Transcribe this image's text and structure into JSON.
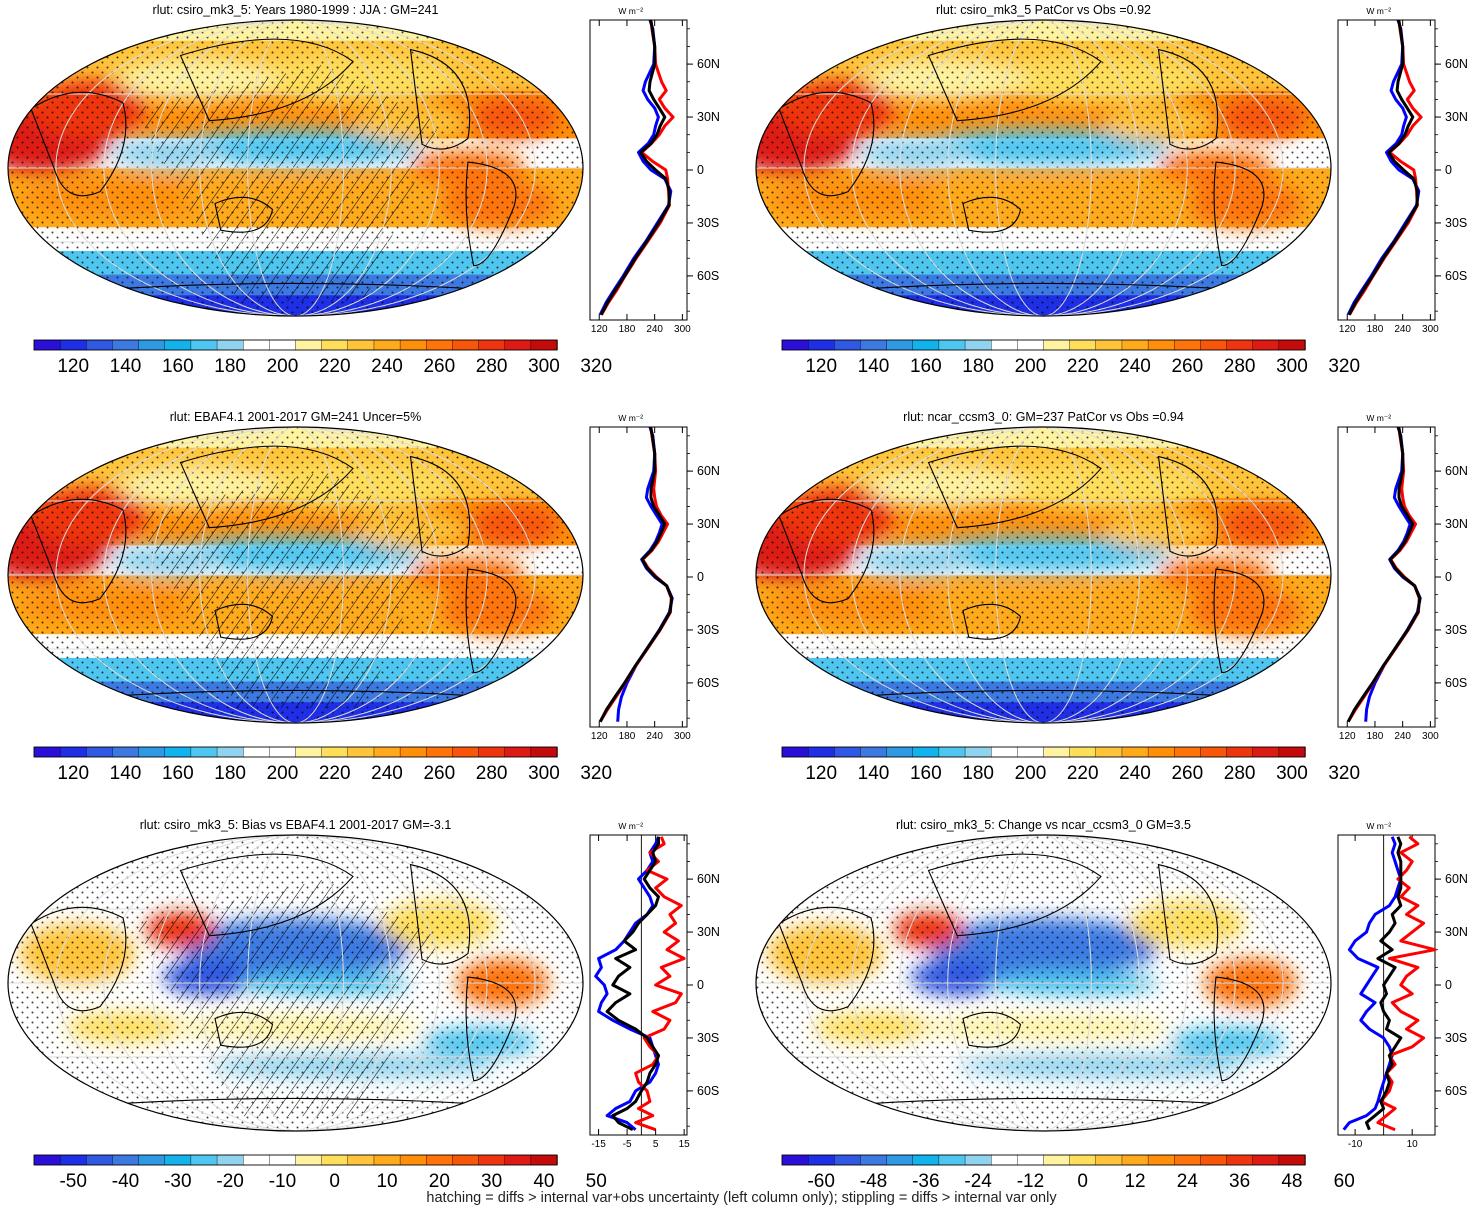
{
  "footer_note": "hatching = diffs > internal var+obs uncertainty (left column only); stippling = diffs > internal var only",
  "zonal_unit": "W m⁻²",
  "lat_labels": [
    "60N",
    "30N",
    "0",
    "30S",
    "60S"
  ],
  "colors": {
    "ramp_abs": [
      "#2a0fd8",
      "#1f2fe6",
      "#3058e2",
      "#3c7ae2",
      "#2f9ae4",
      "#12b3ec",
      "#4fc6ef",
      "#8fd3ee",
      "#ffffff",
      "#ffffff",
      "#fff2a0",
      "#ffde5c",
      "#ffc43a",
      "#ffaa1c",
      "#ff8f0a",
      "#ff740a",
      "#f8560a",
      "#ee3510",
      "#de1a14",
      "#c40a0a"
    ],
    "ramp_diff": [
      "#2a0fd8",
      "#1f2fe6",
      "#3058e2",
      "#3c7ae2",
      "#2f9ae4",
      "#12b3ec",
      "#4fc6ef",
      "#8fd3ee",
      "#ffffff",
      "#ffffff",
      "#fff2a0",
      "#ffde5c",
      "#ffc43a",
      "#ffaa1c",
      "#ff8f0a",
      "#ff740a",
      "#f8560a",
      "#ee3510",
      "#de1a14",
      "#c40a0a"
    ],
    "line_model": "#0000ff",
    "line_obs": "#ff0000",
    "line_diff": "#000000"
  },
  "panels": [
    {
      "id": "model-abs",
      "title": "rlut: csiro_mk3_5: Years 1980-1999 : JJA : GM=241",
      "map_type": "abs",
      "hatching": true,
      "colorbar_labels": [
        "120",
        "140",
        "160",
        "180",
        "200",
        "220",
        "240",
        "260",
        "280",
        "300",
        "320"
      ],
      "zonal": {
        "range": [
          100,
          310
        ],
        "tick_values": [
          120,
          180,
          240,
          300
        ],
        "tick_labels": [
          "120",
          "180",
          "240",
          "300"
        ],
        "zero_line": false,
        "lat": [
          -82,
          -75,
          -68,
          -60,
          -50,
          -40,
          -30,
          -20,
          -12,
          -5,
          0,
          5,
          10,
          15,
          20,
          25,
          30,
          35,
          40,
          45,
          50,
          60,
          70,
          80,
          85
        ],
        "series": [
          {
            "name": "model",
            "color": "blue",
            "values": [
              122,
              135,
              152,
              172,
              195,
              222,
              246,
              270,
              275,
              262,
              232,
              215,
              205,
              226,
              238,
              242,
              248,
              240,
              225,
              215,
              220,
              238,
              240,
              236,
              230
            ]
          },
          {
            "name": "obs",
            "color": "red",
            "values": [
              125,
              140,
              158,
              176,
              200,
              226,
              252,
              272,
              270,
              268,
              264,
              235,
              212,
              233,
              250,
              262,
              280,
              262,
              250,
              265,
              255,
              242,
              240,
              234,
              232
            ]
          },
          {
            "name": "ref",
            "color": "black",
            "values": [
              124,
              138,
              155,
              175,
              198,
              224,
              249,
              271,
              272,
              264,
              242,
              222,
              210,
              232,
              245,
              252,
              262,
              250,
              238,
              228,
              230,
              240,
              240,
              235,
              231
            ]
          }
        ]
      }
    },
    {
      "id": "model-abs-2",
      "title": "rlut: csiro_mk3_5 PatCor vs Obs =0.92",
      "map_type": "abs",
      "hatching": false,
      "colorbar_labels": [
        "120",
        "140",
        "160",
        "180",
        "200",
        "220",
        "240",
        "260",
        "280",
        "300",
        "320"
      ],
      "zonal": {
        "range": [
          100,
          310
        ],
        "tick_values": [
          120,
          180,
          240,
          300
        ],
        "tick_labels": [
          "120",
          "180",
          "240",
          "300"
        ],
        "zero_line": false,
        "lat": [
          -82,
          -75,
          -68,
          -60,
          -50,
          -40,
          -30,
          -20,
          -12,
          -5,
          0,
          5,
          10,
          15,
          20,
          25,
          30,
          35,
          40,
          45,
          50,
          60,
          70,
          80,
          85
        ],
        "series": [
          {
            "name": "model",
            "color": "blue",
            "values": [
              122,
              135,
              152,
              172,
              195,
              222,
              246,
              270,
              275,
              262,
              232,
              215,
              205,
              226,
              238,
              242,
              248,
              240,
              225,
              215,
              220,
              238,
              240,
              236,
              230
            ]
          },
          {
            "name": "obs",
            "color": "red",
            "values": [
              125,
              140,
              158,
              176,
              200,
              226,
              252,
              272,
              270,
              268,
              264,
              235,
              212,
              233,
              250,
              262,
              280,
              262,
              250,
              265,
              255,
              242,
              240,
              234,
              232
            ]
          },
          {
            "name": "ref",
            "color": "black",
            "values": [
              124,
              138,
              155,
              175,
              198,
              224,
              249,
              271,
              272,
              264,
              242,
              222,
              210,
              232,
              245,
              252,
              262,
              250,
              238,
              228,
              230,
              240,
              240,
              235,
              231
            ]
          }
        ]
      }
    },
    {
      "id": "obs-abs",
      "title": "rlut: EBAF4.1 2001-2017 GM=241 Uncer=5%",
      "map_type": "abs",
      "hatching": true,
      "colorbar_labels": [
        "120",
        "140",
        "160",
        "180",
        "200",
        "220",
        "240",
        "260",
        "280",
        "300",
        "320"
      ],
      "zonal": {
        "range": [
          100,
          310
        ],
        "tick_values": [
          120,
          180,
          240,
          300
        ],
        "tick_labels": [
          "120",
          "180",
          "240",
          "300"
        ],
        "zero_line": false,
        "lat": [
          -82,
          -75,
          -68,
          -60,
          -50,
          -40,
          -30,
          -20,
          -12,
          -5,
          0,
          5,
          10,
          15,
          20,
          25,
          30,
          35,
          40,
          45,
          50,
          60,
          70,
          80,
          85
        ],
        "series": [
          {
            "name": "model",
            "color": "blue",
            "values": [
              160,
              162,
              168,
              180,
              200,
              225,
              250,
              272,
              278,
              266,
              240,
              222,
              212,
              230,
              242,
              250,
              256,
              244,
              232,
              222,
              225,
              238,
              240,
              236,
              230
            ]
          },
          {
            "name": "obs",
            "color": "red",
            "values": [
              122,
              138,
              156,
              176,
              200,
              226,
              252,
              274,
              276,
              266,
              244,
              226,
              214,
              234,
              248,
              258,
              268,
              254,
              244,
              240,
              238,
              242,
              240,
              234,
              232
            ]
          },
          {
            "name": "ref",
            "color": "black",
            "values": [
              122,
              136,
              154,
              175,
              199,
              225,
              251,
              273,
              277,
              266,
              242,
              224,
              213,
              232,
              245,
              254,
              262,
              250,
              238,
              232,
              232,
              240,
              240,
              235,
              231
            ]
          }
        ]
      }
    },
    {
      "id": "model2-abs",
      "title": "rlut: ncar_ccsm3_0: GM=237 PatCor vs Obs =0.94",
      "map_type": "abs",
      "hatching": false,
      "colorbar_labels": [
        "120",
        "140",
        "160",
        "180",
        "200",
        "220",
        "240",
        "260",
        "280",
        "300",
        "320"
      ],
      "zonal": {
        "range": [
          100,
          310
        ],
        "tick_values": [
          120,
          180,
          240,
          300
        ],
        "tick_labels": [
          "120",
          "180",
          "240",
          "300"
        ],
        "zero_line": false,
        "lat": [
          -82,
          -75,
          -68,
          -60,
          -50,
          -40,
          -30,
          -20,
          -12,
          -5,
          0,
          5,
          10,
          15,
          20,
          25,
          30,
          35,
          40,
          45,
          50,
          60,
          70,
          80,
          85
        ],
        "series": [
          {
            "name": "model",
            "color": "blue",
            "values": [
              160,
              162,
              168,
              180,
              200,
              225,
              250,
              272,
              278,
              266,
              240,
              222,
              212,
              230,
              242,
              250,
              256,
              244,
              232,
              222,
              225,
              238,
              240,
              236,
              230
            ]
          },
          {
            "name": "obs",
            "color": "red",
            "values": [
              122,
              138,
              156,
              176,
              200,
              226,
              252,
              274,
              276,
              266,
              244,
              226,
              214,
              234,
              248,
              258,
              268,
              254,
              244,
              240,
              238,
              242,
              240,
              234,
              232
            ]
          },
          {
            "name": "ref",
            "color": "black",
            "values": [
              122,
              136,
              154,
              175,
              199,
              225,
              251,
              273,
              277,
              266,
              242,
              224,
              213,
              232,
              245,
              254,
              262,
              250,
              238,
              232,
              232,
              240,
              240,
              235,
              231
            ]
          }
        ]
      }
    },
    {
      "id": "bias",
      "title": "rlut: csiro_mk3_5: Bias vs EBAF4.1 2001-2017 GM=-3.1",
      "map_type": "diff",
      "hatching": true,
      "colorbar_labels": [
        "-50",
        "-40",
        "-30",
        "-20",
        "-10",
        "0",
        "10",
        "20",
        "30",
        "40",
        "50"
      ],
      "zonal": {
        "range": [
          -18,
          16
        ],
        "tick_values": [
          -15,
          -5,
          5,
          15
        ],
        "tick_labels": [
          "-15",
          "-5",
          "5",
          "15"
        ],
        "zero_line": true,
        "lat": [
          -82,
          -78,
          -74,
          -70,
          -66,
          -60,
          -55,
          -50,
          -45,
          -40,
          -35,
          -30,
          -25,
          -20,
          -15,
          -10,
          -5,
          0,
          5,
          10,
          15,
          20,
          25,
          30,
          35,
          40,
          45,
          50,
          55,
          60,
          65,
          70,
          75,
          80,
          84
        ],
        "series": [
          {
            "name": "model",
            "color": "blue",
            "values": [
              -2,
              -5,
              -12,
              -9,
              -4,
              -2,
              3,
              5,
              6,
              5,
              4,
              3,
              -4,
              -10,
              -15,
              -14,
              -12,
              -13,
              -16,
              -14,
              -15,
              -9,
              -6,
              -4,
              -2,
              2,
              4,
              3,
              1,
              -1,
              2,
              4,
              3,
              5,
              6
            ]
          },
          {
            "name": "obs",
            "color": "red",
            "values": [
              5,
              -2,
              4,
              -1,
              3,
              2,
              -1,
              -2,
              4,
              6,
              3,
              1,
              8,
              10,
              4,
              12,
              14,
              5,
              10,
              7,
              15,
              9,
              13,
              8,
              12,
              10,
              14,
              8,
              5,
              9,
              2,
              6,
              3,
              8,
              7
            ]
          },
          {
            "name": "ref",
            "color": "black",
            "values": [
              -3,
              -8,
              -10,
              -5,
              -2,
              0,
              2,
              3,
              5,
              6,
              4,
              2,
              -2,
              -8,
              -12,
              -9,
              -4,
              -10,
              -8,
              -4,
              -9,
              -2,
              -6,
              -3,
              -1,
              2,
              5,
              6,
              3,
              1,
              3,
              5,
              4,
              6,
              6
            ]
          }
        ]
      }
    },
    {
      "id": "change",
      "title": "rlut: csiro_mk3_5: Change vs ncar_ccsm3_0 GM=3.5",
      "map_type": "diff",
      "hatching": false,
      "colorbar_labels": [
        "-60",
        "-48",
        "-36",
        "-24",
        "-12",
        "0",
        "12",
        "24",
        "36",
        "48",
        "60"
      ],
      "zonal": {
        "range": [
          -16,
          18
        ],
        "tick_values": [
          -10,
          10
        ],
        "tick_labels": [
          "-10",
          "10"
        ],
        "zero_line": true,
        "lat": [
          -82,
          -78,
          -74,
          -70,
          -66,
          -60,
          -55,
          -50,
          -45,
          -40,
          -35,
          -30,
          -25,
          -20,
          -15,
          -10,
          -5,
          0,
          5,
          10,
          15,
          20,
          25,
          30,
          35,
          40,
          45,
          50,
          55,
          60,
          65,
          70,
          75,
          80,
          84
        ],
        "series": [
          {
            "name": "model",
            "color": "blue",
            "values": [
              -14,
              -12,
              -6,
              -3,
              -2,
              -1,
              0,
              1,
              2,
              3,
              2,
              0,
              -5,
              -8,
              -6,
              -3,
              -8,
              -6,
              -4,
              -2,
              -9,
              -12,
              -10,
              -6,
              -5,
              -3,
              2,
              4,
              5,
              6,
              5,
              4,
              3,
              4,
              3
            ]
          },
          {
            "name": "obs",
            "color": "red",
            "values": [
              4,
              -2,
              1,
              4,
              -1,
              2,
              3,
              1,
              4,
              2,
              10,
              14,
              8,
              12,
              6,
              3,
              10,
              6,
              8,
              12,
              2,
              18,
              6,
              10,
              14,
              8,
              12,
              6,
              9,
              5,
              8,
              10,
              6,
              12,
              9
            ]
          },
          {
            "name": "ref",
            "color": "black",
            "values": [
              -5,
              -6,
              -3,
              0,
              -1,
              1,
              2,
              1,
              3,
              2,
              4,
              6,
              1,
              2,
              0,
              -1,
              1,
              0,
              2,
              4,
              -2,
              3,
              -1,
              2,
              4,
              3,
              6,
              5,
              6,
              6,
              6,
              6,
              5,
              6,
              5
            ]
          }
        ]
      }
    }
  ]
}
